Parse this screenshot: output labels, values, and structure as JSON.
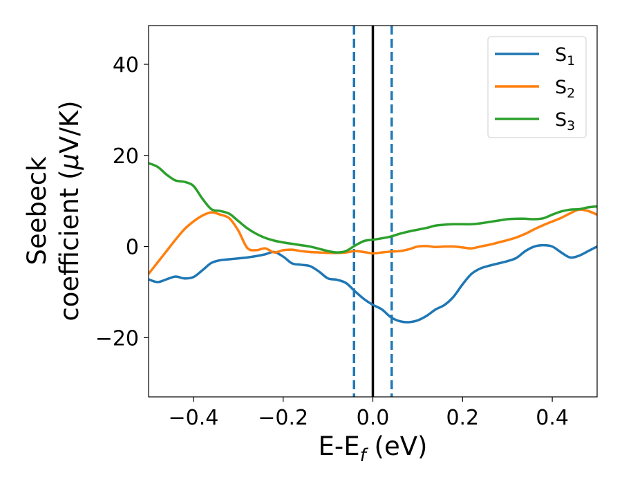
{
  "chart_data": {
    "type": "line",
    "xlabel": "E-E",
    "xlabel_sub": "f",
    "xlabel_unit": " (eV)",
    "ylabel_line1": "Seebeck",
    "ylabel_line2_prefix": "coefficient  (",
    "ylabel_line2_mu": "μ",
    "ylabel_line2_suffix": "V/K)",
    "xlim": [
      -0.5,
      0.5
    ],
    "ylim": [
      -33,
      48.5
    ],
    "xticks": [
      -0.4,
      -0.2,
      0.0,
      0.2,
      0.4
    ],
    "xtick_labels": [
      "−0.4",
      "−0.2",
      "0.0",
      "0.2",
      "0.4"
    ],
    "yticks": [
      -20,
      0,
      20,
      40
    ],
    "ytick_labels": [
      "−20",
      "0",
      "20",
      "40"
    ],
    "legend_position": "top-right",
    "vlines": [
      {
        "x": 0.0,
        "style": "solid",
        "color": "#000000"
      },
      {
        "x": -0.042,
        "style": "dashed",
        "color": "#1f77b4"
      },
      {
        "x": 0.042,
        "style": "dashed",
        "color": "#1f77b4"
      }
    ],
    "series": [
      {
        "name": "S",
        "sub": "1",
        "color": "#1f77b4",
        "x": [
          -0.5,
          -0.48,
          -0.46,
          -0.44,
          -0.42,
          -0.4,
          -0.38,
          -0.36,
          -0.34,
          -0.32,
          -0.3,
          -0.28,
          -0.26,
          -0.24,
          -0.22,
          -0.2,
          -0.18,
          -0.16,
          -0.14,
          -0.12,
          -0.1,
          -0.08,
          -0.06,
          -0.04,
          -0.02,
          0.0,
          0.02,
          0.04,
          0.06,
          0.08,
          0.1,
          0.12,
          0.14,
          0.16,
          0.18,
          0.2,
          0.22,
          0.24,
          0.26,
          0.28,
          0.3,
          0.32,
          0.34,
          0.36,
          0.38,
          0.4,
          0.42,
          0.44,
          0.46,
          0.48,
          0.5
        ],
        "y": [
          -7.2,
          -7.8,
          -7.2,
          -6.6,
          -7.0,
          -6.7,
          -5.2,
          -3.6,
          -3.0,
          -2.8,
          -2.6,
          -2.4,
          -2.1,
          -1.7,
          -1.2,
          -2.2,
          -3.7,
          -4.0,
          -4.3,
          -5.5,
          -7.0,
          -7.3,
          -8.0,
          -9.8,
          -11.5,
          -12.8,
          -13.8,
          -15.5,
          -16.4,
          -16.6,
          -16.2,
          -15.2,
          -13.8,
          -12.8,
          -11.0,
          -8.3,
          -6.0,
          -4.8,
          -4.2,
          -3.7,
          -3.2,
          -2.5,
          -1.0,
          0.0,
          0.3,
          0.0,
          -1.3,
          -2.4,
          -2.0,
          -1.0,
          0.0
        ]
      },
      {
        "name": "S",
        "sub": "2",
        "color": "#ff7f0e",
        "x": [
          -0.5,
          -0.48,
          -0.46,
          -0.44,
          -0.42,
          -0.4,
          -0.38,
          -0.36,
          -0.34,
          -0.32,
          -0.3,
          -0.28,
          -0.26,
          -0.24,
          -0.22,
          -0.2,
          -0.18,
          -0.16,
          -0.14,
          -0.12,
          -0.1,
          -0.08,
          -0.06,
          -0.04,
          -0.02,
          0.0,
          0.02,
          0.04,
          0.06,
          0.08,
          0.1,
          0.12,
          0.14,
          0.16,
          0.18,
          0.2,
          0.22,
          0.24,
          0.26,
          0.28,
          0.3,
          0.32,
          0.34,
          0.36,
          0.38,
          0.4,
          0.42,
          0.44,
          0.46,
          0.48,
          0.5
        ],
        "y": [
          -6.0,
          -3.5,
          -1.0,
          1.5,
          3.8,
          5.5,
          6.8,
          7.5,
          7.0,
          6.2,
          3.5,
          -0.3,
          -0.8,
          -0.4,
          -1.3,
          -0.8,
          -0.7,
          -1.0,
          -1.2,
          -1.3,
          -1.4,
          -1.4,
          -1.3,
          -1.0,
          -1.2,
          -1.5,
          -1.3,
          -1.1,
          -1.0,
          -0.6,
          0.0,
          0.1,
          -0.1,
          0.0,
          0.0,
          -0.2,
          -0.4,
          0.0,
          0.4,
          0.9,
          1.4,
          2.0,
          2.8,
          3.8,
          4.7,
          5.5,
          6.3,
          7.3,
          8.1,
          7.8,
          7.0
        ]
      },
      {
        "name": "S",
        "sub": "3",
        "color": "#2ca02c",
        "x": [
          -0.5,
          -0.48,
          -0.46,
          -0.44,
          -0.42,
          -0.4,
          -0.38,
          -0.36,
          -0.34,
          -0.32,
          -0.3,
          -0.28,
          -0.26,
          -0.24,
          -0.22,
          -0.2,
          -0.18,
          -0.16,
          -0.14,
          -0.12,
          -0.1,
          -0.08,
          -0.06,
          -0.04,
          -0.02,
          0.0,
          0.02,
          0.04,
          0.06,
          0.08,
          0.1,
          0.12,
          0.14,
          0.16,
          0.18,
          0.2,
          0.22,
          0.24,
          0.26,
          0.28,
          0.3,
          0.32,
          0.34,
          0.36,
          0.38,
          0.4,
          0.42,
          0.44,
          0.46,
          0.48,
          0.5
        ],
        "y": [
          18.3,
          17.5,
          15.8,
          14.5,
          14.2,
          13.3,
          10.5,
          8.2,
          7.8,
          7.2,
          5.6,
          4.0,
          2.8,
          1.9,
          1.3,
          0.9,
          0.6,
          0.3,
          0.0,
          -0.5,
          -1.0,
          -1.3,
          -1.0,
          0.2,
          1.2,
          1.5,
          1.8,
          2.2,
          2.8,
          3.3,
          3.7,
          4.1,
          4.6,
          4.8,
          4.9,
          4.9,
          4.9,
          5.1,
          5.4,
          5.7,
          6.0,
          6.1,
          6.1,
          6.0,
          6.2,
          7.0,
          7.7,
          8.1,
          8.2,
          8.6,
          8.8
        ]
      }
    ]
  }
}
